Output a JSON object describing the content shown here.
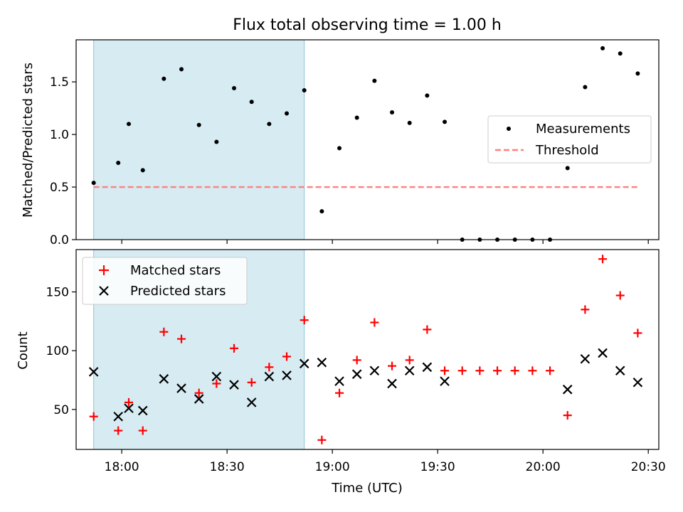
{
  "chart_data": [
    {
      "type": "scatter",
      "title": "Flux total observing time = 1.00 h",
      "xlabel": "",
      "ylabel": "Matched/Predicted stars",
      "ylim": [
        0,
        1.9
      ],
      "yticks": [
        "0.0",
        "0.5",
        "1.0",
        "1.5"
      ],
      "ytick_values": [
        0,
        0.5,
        1.0,
        1.5
      ],
      "shaded_region": {
        "x_start": "17:52",
        "x_end": "18:52",
        "color": "#add8e6"
      },
      "legend_position": "center-right",
      "series": [
        {
          "name": "Measurements",
          "marker": "dot",
          "color": "#000000",
          "x": [
            "17:52",
            "17:59",
            "18:02",
            "18:06",
            "18:12",
            "18:17",
            "18:22",
            "18:27",
            "18:32",
            "18:37",
            "18:42",
            "18:47",
            "18:52",
            "18:57",
            "19:02",
            "19:07",
            "19:12",
            "19:17",
            "19:22",
            "19:27",
            "19:32",
            "19:37",
            "19:42",
            "19:47",
            "19:52",
            "19:57",
            "20:02",
            "20:07",
            "20:12",
            "20:17",
            "20:22",
            "20:27"
          ],
          "y": [
            0.54,
            0.73,
            1.1,
            0.66,
            1.53,
            1.62,
            1.09,
            0.93,
            1.44,
            1.31,
            1.1,
            1.2,
            1.42,
            0.27,
            0.87,
            1.16,
            1.51,
            1.21,
            1.11,
            1.37,
            1.12,
            0,
            0,
            0,
            0,
            0,
            0,
            0.68,
            1.45,
            1.82,
            1.77,
            1.58
          ]
        },
        {
          "name": "Threshold",
          "style": "dashed",
          "color": "#ff7f7f",
          "x": [
            "17:52",
            "20:27"
          ],
          "y": [
            0.5,
            0.5
          ]
        }
      ]
    },
    {
      "type": "scatter",
      "title": "",
      "xlabel": "Time (UTC)",
      "ylabel": "Count",
      "ylim": [
        16,
        186
      ],
      "yticks": [
        "50",
        "100",
        "150"
      ],
      "ytick_values": [
        50,
        100,
        150
      ],
      "xlim": [
        "17:47",
        "20:33"
      ],
      "xticks": [
        "18:00",
        "18:30",
        "19:00",
        "19:30",
        "20:00",
        "20:30"
      ],
      "shaded_region": {
        "x_start": "17:52",
        "x_end": "18:52",
        "color": "#add8e6"
      },
      "legend_position": "top-left",
      "series": [
        {
          "name": "Matched stars",
          "marker": "plus",
          "color": "#ff0000",
          "x": [
            "17:52",
            "17:59",
            "18:02",
            "18:06",
            "18:12",
            "18:17",
            "18:22",
            "18:27",
            "18:32",
            "18:37",
            "18:42",
            "18:47",
            "18:52",
            "18:57",
            "19:02",
            "19:07",
            "19:12",
            "19:17",
            "19:22",
            "19:27",
            "19:32",
            "19:37",
            "19:42",
            "19:47",
            "19:52",
            "19:57",
            "20:02",
            "20:07",
            "20:12",
            "20:17",
            "20:22",
            "20:27"
          ],
          "y": [
            44,
            32,
            56,
            32,
            116,
            110,
            64,
            72,
            102,
            73,
            86,
            95,
            126,
            24,
            64,
            92,
            124,
            87,
            92,
            118,
            83,
            83,
            83,
            83,
            83,
            83,
            83,
            45,
            135,
            178,
            147,
            115
          ]
        },
        {
          "name": "Predicted stars",
          "marker": "x",
          "color": "#000000",
          "x": [
            "17:52",
            "17:59",
            "18:02",
            "18:06",
            "18:12",
            "18:17",
            "18:22",
            "18:27",
            "18:32",
            "18:37",
            "18:42",
            "18:47",
            "18:52",
            "18:57",
            "19:02",
            "19:07",
            "19:12",
            "19:17",
            "19:22",
            "19:27",
            "19:32",
            "20:07",
            "20:12",
            "20:17",
            "20:22",
            "20:27"
          ],
          "y": [
            82,
            44,
            51,
            49,
            76,
            68,
            59,
            78,
            71,
            56,
            78,
            79,
            89,
            90,
            74,
            80,
            83,
            72,
            83,
            86,
            74,
            67,
            93,
            98,
            83,
            73
          ]
        }
      ]
    }
  ]
}
